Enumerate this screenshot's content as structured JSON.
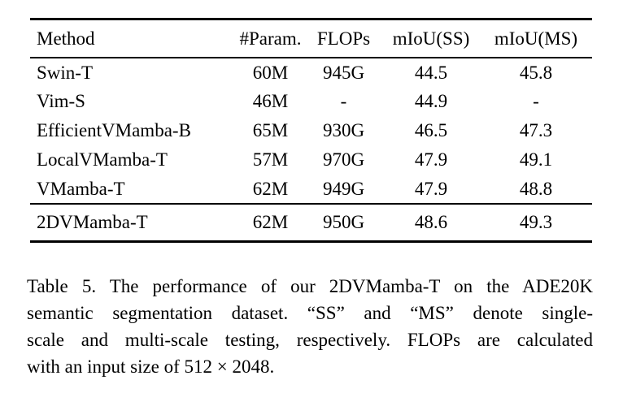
{
  "table": {
    "headers": {
      "method": "Method",
      "params": "#Param.",
      "flops": "FLOPs",
      "miou_ss": "mIoU(SS)",
      "miou_ms": "mIoU(MS)"
    },
    "rows": [
      {
        "method": "Swin-T",
        "params": "60M",
        "flops": "945G",
        "miou_ss": "44.5",
        "miou_ms": "45.8"
      },
      {
        "method": "Vim-S",
        "params": "46M",
        "flops": "-",
        "miou_ss": "44.9",
        "miou_ms": "-"
      },
      {
        "method": "EfficientVMamba-B",
        "params": "65M",
        "flops": "930G",
        "miou_ss": "46.5",
        "miou_ms": "47.3"
      },
      {
        "method": "LocalVMamba-T",
        "params": "57M",
        "flops": "970G",
        "miou_ss": "47.9",
        "miou_ms": "49.1"
      },
      {
        "method": "VMamba-T",
        "params": "62M",
        "flops": "949G",
        "miou_ss": "47.9",
        "miou_ms": "48.8"
      }
    ],
    "highlight_row": {
      "method": "2DVMamba-T",
      "params": "62M",
      "flops": "950G",
      "miou_ss": "48.6",
      "miou_ms": "49.3"
    }
  },
  "caption": {
    "lines": [
      "Table 5. The performance of our 2DVMamba-T on the ADE20K",
      "semantic segmentation dataset. “SS” and “MS” denote single-",
      "scale and multi-scale testing, respectively. FLOPs are calculated",
      "with an input size of 512 × 2048."
    ]
  }
}
